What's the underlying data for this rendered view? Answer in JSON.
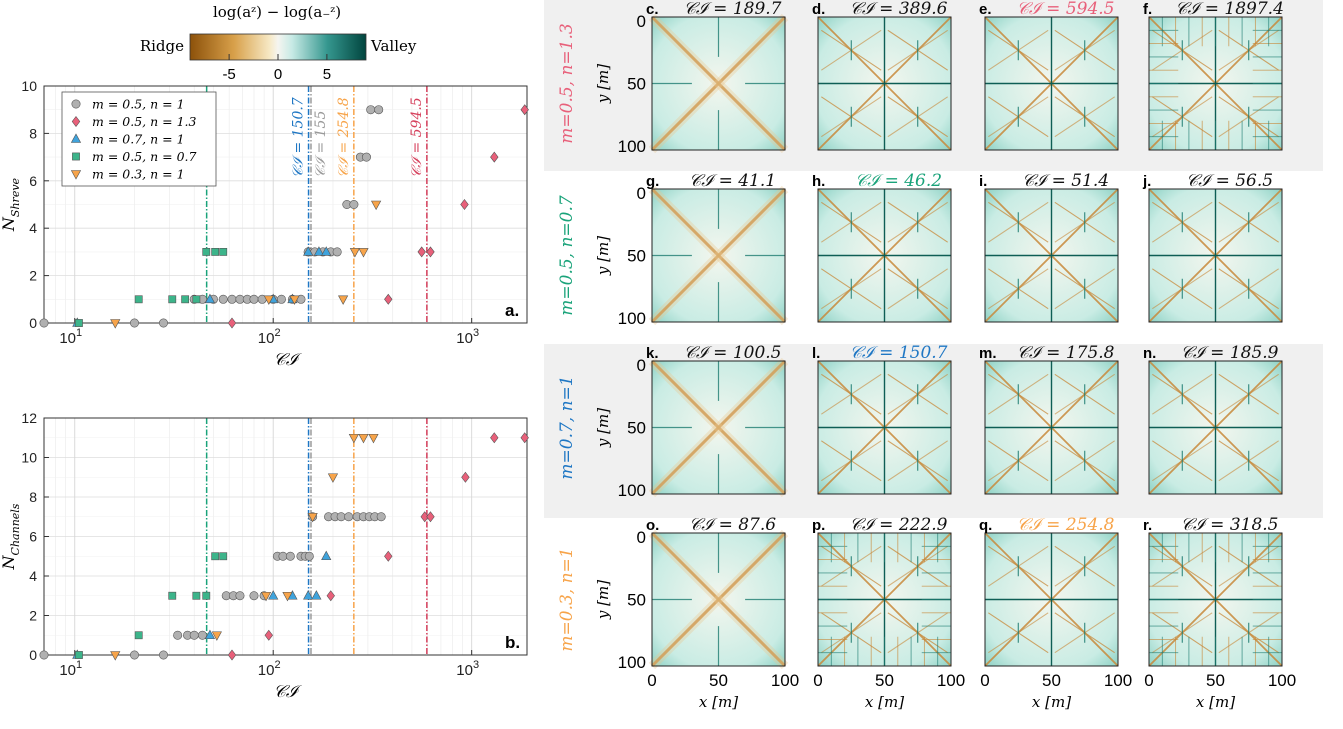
{
  "colorbar": {
    "title": "log(a_z) − log(a_−z)",
    "left_label": "Ridge",
    "right_label": "Valley",
    "ticks": [
      -5,
      0,
      5
    ],
    "range": [
      -9,
      9
    ],
    "colors": {
      "ridge": "#8c510a",
      "neutral": "#f5f5f0",
      "valley": "#01665e"
    }
  },
  "legend": [
    {
      "label": "m = 0.5, n = 1",
      "color": "#b0b0b0",
      "marker": "circle"
    },
    {
      "label": "m = 0.5, n = 1.3",
      "color": "#e8607a",
      "marker": "diamond"
    },
    {
      "label": "m = 0.7, n = 1",
      "color": "#3fa3dc",
      "marker": "triangle-up"
    },
    {
      "label": "m = 0.5, n = 0.7",
      "color": "#3cb48a",
      "marker": "square"
    },
    {
      "label": "m = 0.3, n = 1",
      "color": "#f7a44a",
      "marker": "triangle-down"
    }
  ],
  "vlines": [
    {
      "x": 46.2,
      "label": "C_I = 46.2",
      "color": "#1aa37a"
    },
    {
      "x": 150.7,
      "label": "C_I = 150.7",
      "color": "#1f77c4"
    },
    {
      "x": 155,
      "label": "C_I = 155",
      "color": "#9a9a9a"
    },
    {
      "x": 254.8,
      "label": "C_I = 254.8",
      "color": "#f7a44a"
    },
    {
      "x": 594.5,
      "label": "C_I = 594.5",
      "color": "#d6405c"
    }
  ],
  "chart_data": [
    {
      "type": "scatter",
      "panel": "a.",
      "xlabel": "C_I",
      "ylabel": "N_Shreve",
      "xscale": "log",
      "xlim": [
        7,
        1900
      ],
      "ylim": [
        0,
        10
      ],
      "yticks": [
        0,
        2,
        4,
        6,
        8,
        10
      ],
      "xticks": [
        10,
        100,
        1000
      ],
      "series": [
        {
          "name": "m = 0.5, n = 1",
          "points": [
            [
              7,
              0
            ],
            [
              20,
              0
            ],
            [
              28,
              0
            ],
            [
              40,
              1
            ],
            [
              44,
              1
            ],
            [
              50,
              1
            ],
            [
              56,
              1
            ],
            [
              62,
              1
            ],
            [
              68,
              1
            ],
            [
              74,
              1
            ],
            [
              80,
              1
            ],
            [
              88,
              1
            ],
            [
              100,
              1
            ],
            [
              110,
              1
            ],
            [
              125,
              1
            ],
            [
              138,
              1
            ],
            [
              150,
              3
            ],
            [
              162,
              3
            ],
            [
              178,
              3
            ],
            [
              195,
              3
            ],
            [
              210,
              3
            ],
            [
              235,
              5
            ],
            [
              255,
              5
            ],
            [
              275,
              7
            ],
            [
              295,
              7
            ],
            [
              310,
              9
            ],
            [
              340,
              9
            ]
          ]
        },
        {
          "name": "m = 0.5, n = 1.3",
          "points": [
            [
              62,
              0
            ],
            [
              380,
              1
            ],
            [
              560,
              3
            ],
            [
              620,
              3
            ],
            [
              920,
              5
            ],
            [
              1300,
              7
            ],
            [
              1850,
              9
            ]
          ]
        },
        {
          "name": "m = 0.7, n = 1",
          "points": [
            [
              10.3,
              0
            ],
            [
              48,
              1
            ],
            [
              100,
              1
            ],
            [
              125,
              1
            ],
            [
              150,
              3
            ],
            [
              170,
              3
            ],
            [
              185,
              3
            ]
          ]
        },
        {
          "name": "m = 0.5, n = 0.7",
          "points": [
            [
              10.5,
              0
            ],
            [
              21,
              1
            ],
            [
              31,
              1
            ],
            [
              36,
              1
            ],
            [
              41,
              1
            ],
            [
              46,
              3
            ],
            [
              51,
              3
            ],
            [
              56,
              3
            ]
          ]
        },
        {
          "name": "m = 0.3, n = 1",
          "points": [
            [
              16,
              0
            ],
            [
              95,
              1
            ],
            [
              128,
              1
            ],
            [
              225,
              1
            ],
            [
              258,
              3
            ],
            [
              285,
              3
            ],
            [
              330,
              5
            ]
          ]
        }
      ]
    },
    {
      "type": "scatter",
      "panel": "b.",
      "xlabel": "C_I",
      "ylabel": "N_Channels",
      "xscale": "log",
      "xlim": [
        7,
        1900
      ],
      "ylim": [
        0,
        12
      ],
      "yticks": [
        0,
        2,
        4,
        6,
        8,
        10,
        12
      ],
      "xticks": [
        10,
        100,
        1000
      ],
      "series": [
        {
          "name": "m = 0.5, n = 1",
          "points": [
            [
              7,
              0
            ],
            [
              20,
              0
            ],
            [
              28,
              0
            ],
            [
              33,
              1
            ],
            [
              37,
              1
            ],
            [
              40,
              1
            ],
            [
              44,
              1
            ],
            [
              58,
              3
            ],
            [
              63,
              3
            ],
            [
              68,
              3
            ],
            [
              80,
              3
            ],
            [
              90,
              3
            ],
            [
              105,
              5
            ],
            [
              112,
              5
            ],
            [
              122,
              5
            ],
            [
              138,
              5
            ],
            [
              145,
              5
            ],
            [
              152,
              5
            ],
            [
              158,
              7
            ],
            [
              190,
              7
            ],
            [
              205,
              7
            ],
            [
              220,
              7
            ],
            [
              240,
              7
            ],
            [
              265,
              7
            ],
            [
              285,
              7
            ],
            [
              305,
              7
            ],
            [
              325,
              7
            ],
            [
              350,
              7
            ]
          ]
        },
        {
          "name": "m = 0.5, n = 1.3",
          "points": [
            [
              62,
              0
            ],
            [
              95,
              1
            ],
            [
              195,
              3
            ],
            [
              380,
              5
            ],
            [
              580,
              7
            ],
            [
              620,
              7
            ],
            [
              930,
              9
            ],
            [
              1300,
              11
            ],
            [
              1850,
              11
            ]
          ]
        },
        {
          "name": "m = 0.7, n = 1",
          "points": [
            [
              10.3,
              0
            ],
            [
              48,
              1
            ],
            [
              100,
              3
            ],
            [
              125,
              3
            ],
            [
              150,
              3
            ],
            [
              165,
              3
            ],
            [
              185,
              5
            ]
          ]
        },
        {
          "name": "m = 0.5, n = 0.7",
          "points": [
            [
              10.5,
              0
            ],
            [
              21,
              1
            ],
            [
              31,
              3
            ],
            [
              41,
              3
            ],
            [
              46,
              3
            ],
            [
              51,
              5
            ],
            [
              56,
              5
            ]
          ]
        },
        {
          "name": "m = 0.3, n = 1",
          "points": [
            [
              16,
              0
            ],
            [
              52,
              1
            ],
            [
              92,
              3
            ],
            [
              118,
              3
            ],
            [
              158,
              7
            ],
            [
              200,
              9
            ],
            [
              255,
              11
            ],
            [
              285,
              11
            ],
            [
              320,
              11
            ]
          ]
        }
      ]
    },
    {
      "type": "heatmap",
      "xlabel": "x [m]",
      "ylabel": "y [m]",
      "xticks": [
        0,
        50,
        100
      ],
      "yticks": [
        0,
        50,
        100
      ],
      "rows": [
        {
          "label": "m=0.5, n=1.3",
          "color": "#e8607a",
          "highlight": true
        },
        {
          "label": "m=0.5, n=0.7",
          "color": "#1aa37a",
          "highlight": false
        },
        {
          "label": "m=0.7, n=1",
          "color": "#1f77c4",
          "highlight": true
        },
        {
          "label": "m=0.3, n=1",
          "color": "#f7a44a",
          "highlight": false
        }
      ],
      "panels": [
        {
          "tag": "c.",
          "title": "C_I = 189.7",
          "hl": false,
          "style": "smooth"
        },
        {
          "tag": "d.",
          "title": "C_I = 389.6",
          "hl": false,
          "style": "branched"
        },
        {
          "tag": "e.",
          "title": "C_I = 594.5",
          "hl": true,
          "style": "branched"
        },
        {
          "tag": "f.",
          "title": "C_I = 1897.4",
          "hl": false,
          "style": "dense"
        },
        {
          "tag": "g.",
          "title": "C_I = 41.1",
          "hl": false,
          "style": "smooth"
        },
        {
          "tag": "h.",
          "title": "C_I = 46.2",
          "hl": true,
          "style": "branched"
        },
        {
          "tag": "i.",
          "title": "C_I = 51.4",
          "hl": false,
          "style": "branched"
        },
        {
          "tag": "j.",
          "title": "C_I = 56.5",
          "hl": false,
          "style": "branched"
        },
        {
          "tag": "k.",
          "title": "C_I = 100.5",
          "hl": false,
          "style": "smooth"
        },
        {
          "tag": "l.",
          "title": "C_I = 150.7",
          "hl": true,
          "style": "branched"
        },
        {
          "tag": "m.",
          "title": "C_I = 175.8",
          "hl": false,
          "style": "branched"
        },
        {
          "tag": "n.",
          "title": "C_I = 185.9",
          "hl": false,
          "style": "branched"
        },
        {
          "tag": "o.",
          "title": "C_I = 87.6",
          "hl": false,
          "style": "smooth"
        },
        {
          "tag": "p.",
          "title": "C_I = 222.9",
          "hl": false,
          "style": "dense"
        },
        {
          "tag": "q.",
          "title": "C_I = 254.8",
          "hl": true,
          "style": "branched"
        },
        {
          "tag": "r.",
          "title": "C_I = 318.5",
          "hl": false,
          "style": "dense"
        }
      ]
    }
  ]
}
